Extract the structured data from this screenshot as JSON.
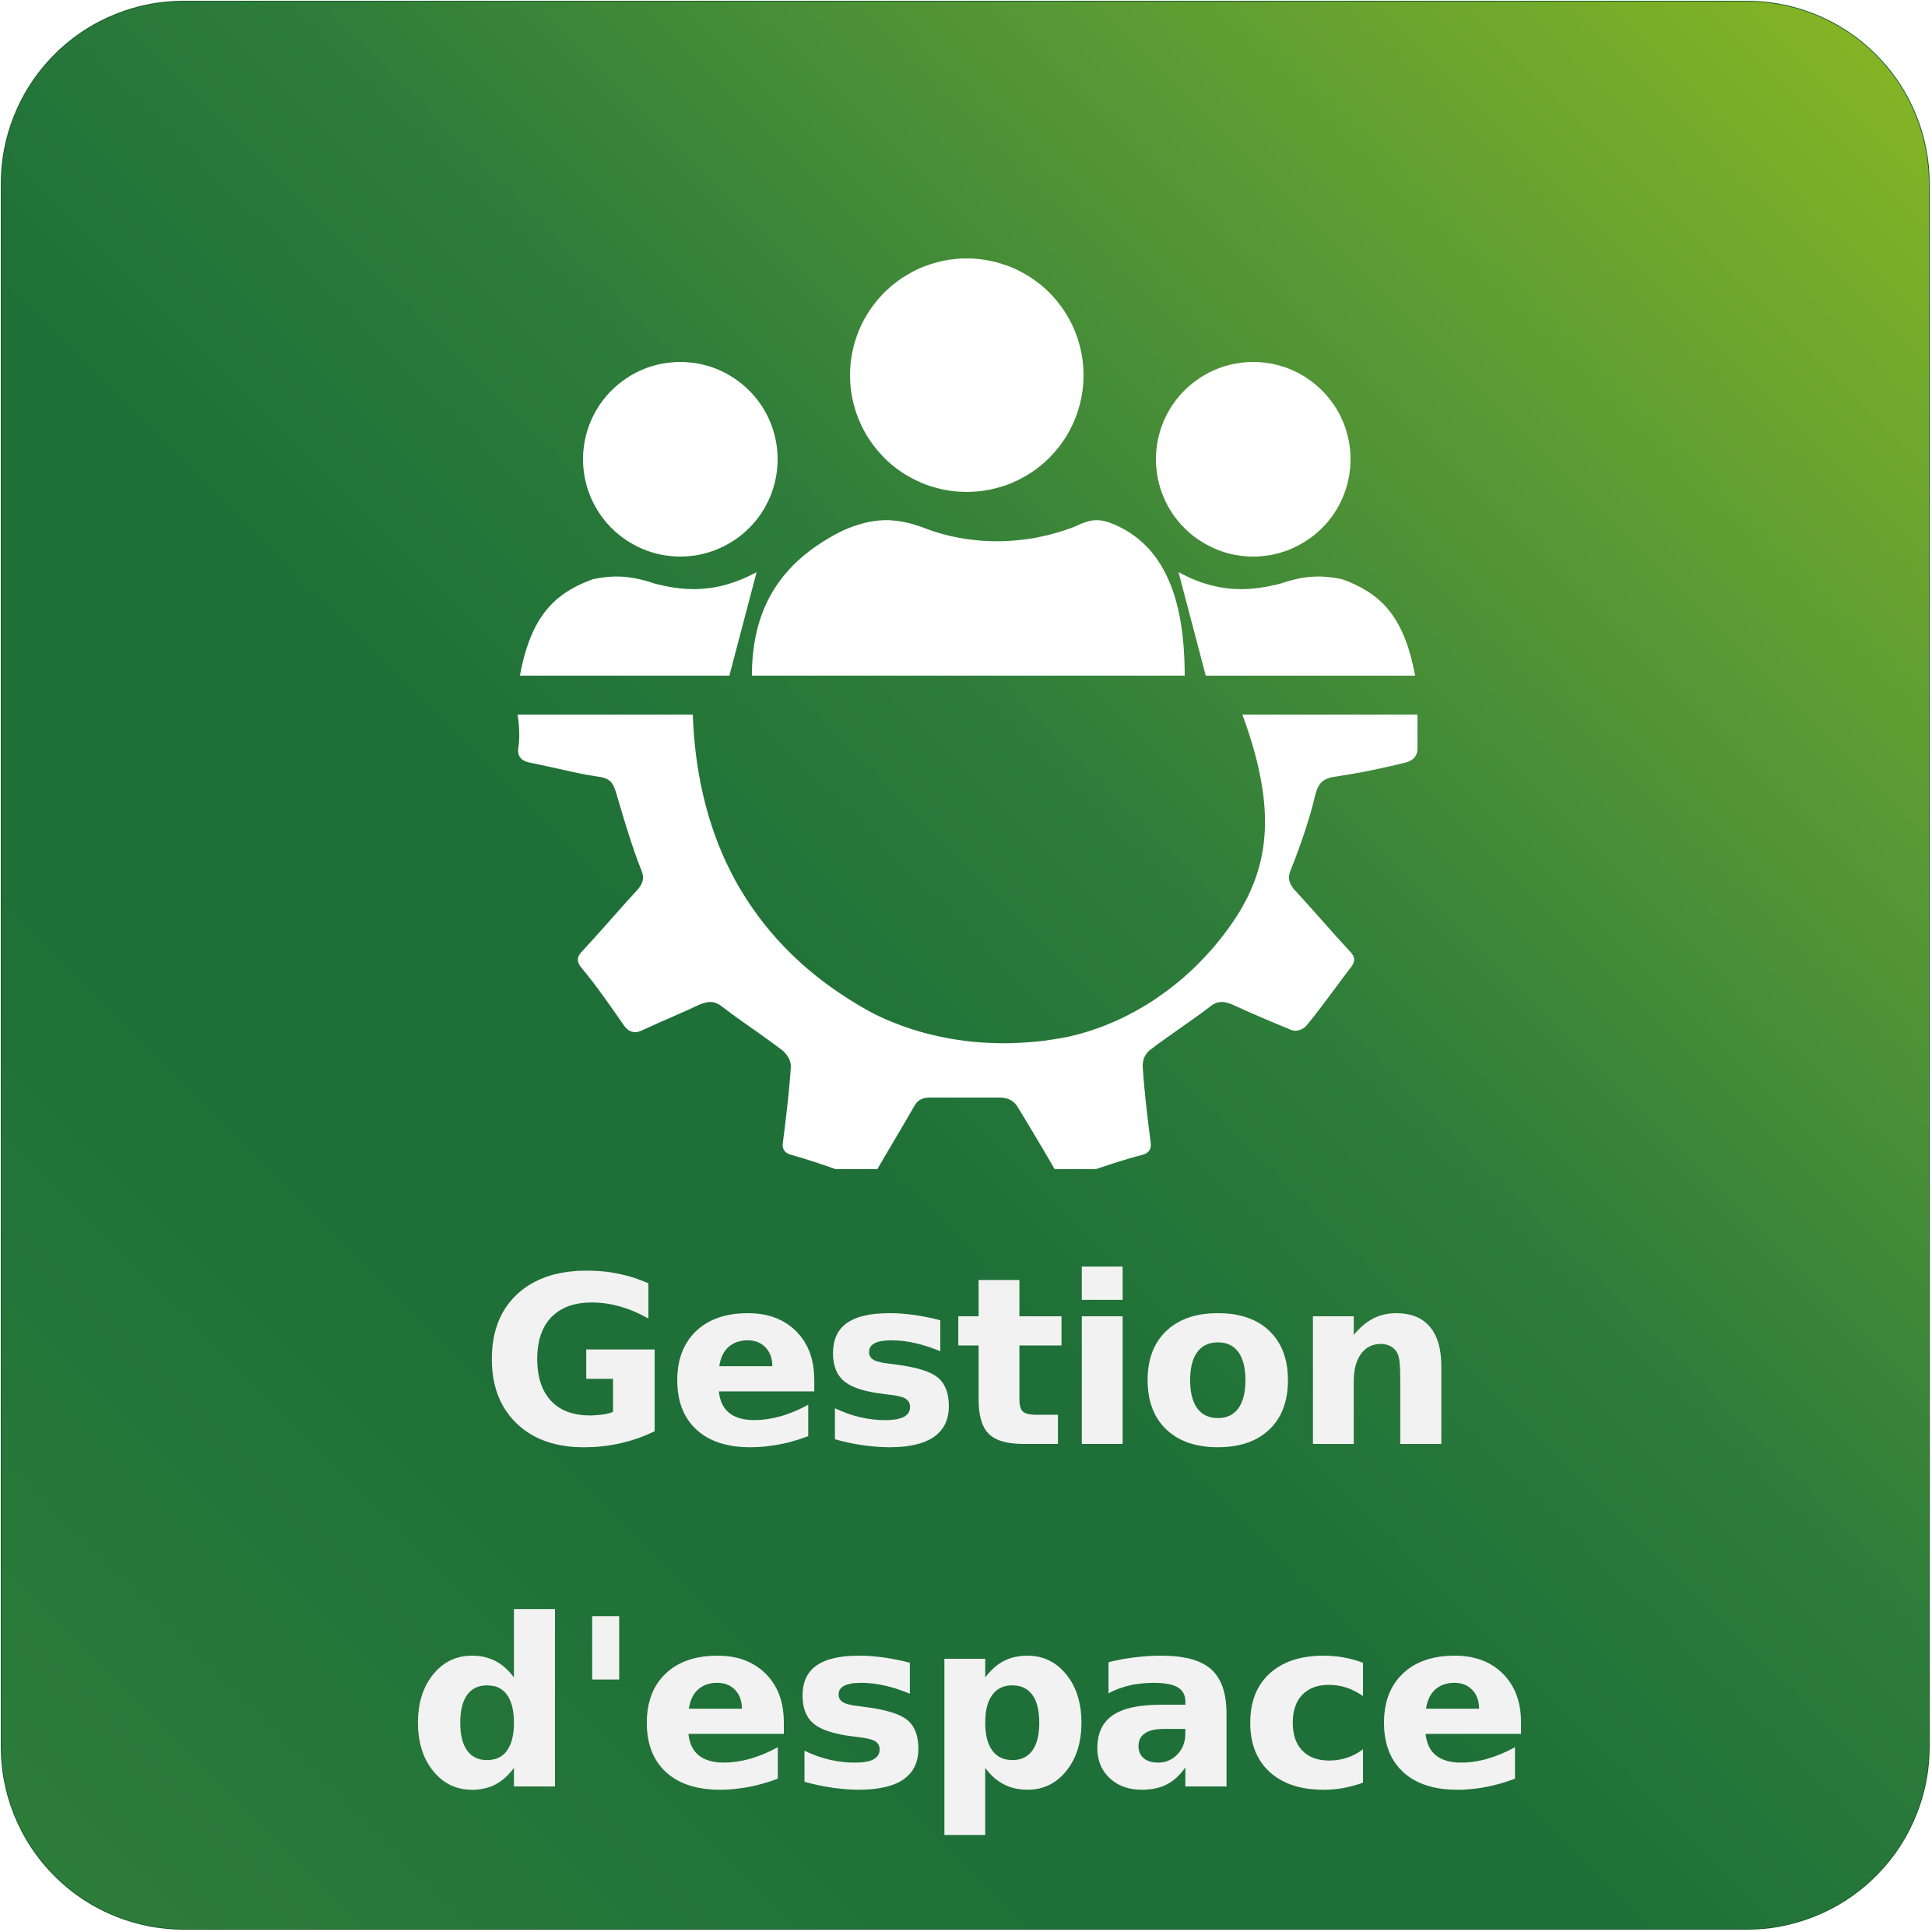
{
  "icon": {
    "name": "team-gear-icon",
    "color": "#ffffff"
  },
  "caption": {
    "line1": "Gestion",
    "line2": "d'espace",
    "color": "#f2f2f2"
  },
  "background": {
    "gradient_start": "#8ab823",
    "gradient_mid": "#2e7d3a",
    "gradient_end": "#1e7038"
  }
}
